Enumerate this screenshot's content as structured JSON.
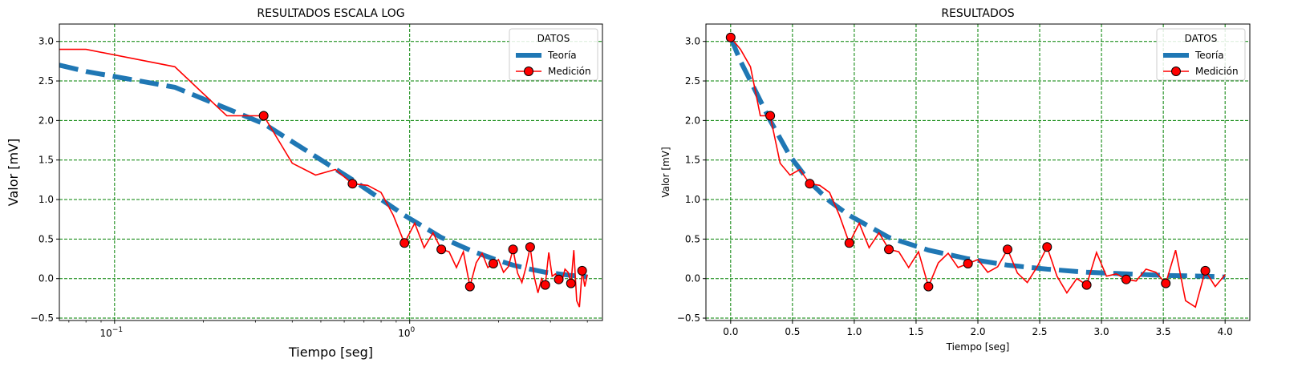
{
  "chart_data": [
    {
      "type": "line",
      "title": "RESULTADOS ESCALA LOG",
      "xlabel": "Tiempo [seg]",
      "ylabel": "Valor [mV]",
      "xscale": "log",
      "xlim": [
        0.065,
        4.5
      ],
      "ylim": [
        -0.53,
        3.22
      ],
      "x_ticks": [
        {
          "value": 0.1,
          "base": "10",
          "exp": "−1"
        },
        {
          "value": 1,
          "base": "10",
          "exp": "0"
        }
      ],
      "y_ticks": [
        "−0.5",
        "0.0",
        "0.5",
        "1.0",
        "1.5",
        "2.0",
        "2.5",
        "3.0"
      ],
      "grid": true,
      "legend": {
        "title": "DATOS",
        "placement": "top-right"
      },
      "series": [
        {
          "name": "Teoría",
          "style": "dashed",
          "color": "#1f77b4",
          "x": [
            0.065,
            0.08,
            0.16,
            0.32,
            0.64,
            0.96,
            1.28,
            1.6,
            1.92,
            2.24,
            2.56,
            2.88,
            3.2,
            3.52,
            3.84,
            4.0
          ],
          "y": [
            2.7,
            2.62,
            2.42,
            1.96,
            1.25,
            0.8,
            0.52,
            0.36,
            0.25,
            0.17,
            0.12,
            0.08,
            0.06,
            0.04,
            0.03,
            0.02
          ]
        },
        {
          "name": "Medición",
          "style": "line-marker",
          "color": "#ff0000",
          "marker_color": "#ff0000",
          "x": [
            0.065,
            0.08,
            0.16,
            0.24,
            0.32,
            0.4,
            0.48,
            0.56,
            0.64,
            0.72,
            0.8,
            0.88,
            0.96,
            1.04,
            1.12,
            1.2,
            1.28,
            1.36,
            1.44,
            1.52,
            1.6,
            1.68,
            1.76,
            1.84,
            1.92,
            2.0,
            2.08,
            2.16,
            2.24,
            2.32,
            2.4,
            2.48,
            2.56,
            2.64,
            2.72,
            2.8,
            2.88,
            2.96,
            3.04,
            3.12,
            3.2,
            3.28,
            3.36,
            3.44,
            3.52,
            3.6,
            3.68,
            3.76,
            3.84,
            3.92,
            4.0
          ],
          "y": [
            2.9,
            2.9,
            2.68,
            2.06,
            2.06,
            1.46,
            1.31,
            1.38,
            1.2,
            1.18,
            1.09,
            0.8,
            0.45,
            0.7,
            0.39,
            0.58,
            0.37,
            0.34,
            0.14,
            0.34,
            -0.1,
            0.2,
            0.32,
            0.14,
            0.19,
            0.24,
            0.08,
            0.15,
            0.37,
            0.07,
            -0.05,
            0.15,
            0.4,
            0.03,
            -0.18,
            0.0,
            -0.08,
            0.33,
            0.03,
            0.06,
            -0.01,
            -0.03,
            0.12,
            0.08,
            -0.06,
            0.36,
            -0.28,
            -0.36,
            0.1,
            -0.1,
            0.05
          ],
          "marker_x": [
            0.32,
            0.64,
            0.96,
            1.28,
            1.6,
            1.92,
            2.24,
            2.56,
            2.88,
            3.2,
            3.52,
            3.84
          ],
          "marker_y": [
            2.06,
            1.2,
            0.45,
            0.37,
            -0.1,
            0.19,
            0.37,
            0.4,
            -0.08,
            -0.01,
            -0.06,
            0.1
          ]
        }
      ]
    },
    {
      "type": "line",
      "title": "RESULTADOS",
      "xlabel": "Tiempo [seg]",
      "ylabel": "Valor [mV]",
      "xscale": "linear",
      "xlim": [
        -0.2,
        4.2
      ],
      "ylim": [
        -0.53,
        3.22
      ],
      "x_ticks": [
        "0.0",
        "0.5",
        "1.0",
        "1.5",
        "2.0",
        "2.5",
        "3.0",
        "3.5",
        "4.0"
      ],
      "y_ticks": [
        "−0.5",
        "0.0",
        "0.5",
        "1.0",
        "1.5",
        "2.0",
        "2.5",
        "3.0"
      ],
      "grid": true,
      "legend": {
        "title": "DATOS",
        "placement": "top-right"
      },
      "series": [
        {
          "name": "Teoría",
          "style": "dashed",
          "color": "#1f77b4",
          "x": [
            0,
            0.08,
            0.16,
            0.32,
            0.48,
            0.64,
            0.8,
            0.96,
            1.28,
            1.6,
            1.92,
            2.24,
            2.56,
            2.88,
            3.2,
            3.52,
            3.84,
            4.0
          ],
          "y": [
            3.05,
            2.75,
            2.5,
            2.0,
            1.55,
            1.22,
            0.98,
            0.8,
            0.52,
            0.36,
            0.25,
            0.17,
            0.12,
            0.08,
            0.06,
            0.04,
            0.03,
            0.02
          ]
        },
        {
          "name": "Medición",
          "style": "line-marker",
          "color": "#ff0000",
          "marker_color": "#ff0000",
          "x": [
            0,
            0.08,
            0.16,
            0.24,
            0.32,
            0.4,
            0.48,
            0.56,
            0.64,
            0.72,
            0.8,
            0.88,
            0.96,
            1.04,
            1.12,
            1.2,
            1.28,
            1.36,
            1.44,
            1.52,
            1.6,
            1.68,
            1.76,
            1.84,
            1.92,
            2.0,
            2.08,
            2.16,
            2.24,
            2.32,
            2.4,
            2.48,
            2.56,
            2.64,
            2.72,
            2.8,
            2.88,
            2.96,
            3.04,
            3.12,
            3.2,
            3.28,
            3.36,
            3.44,
            3.52,
            3.6,
            3.68,
            3.76,
            3.84,
            3.92,
            4.0
          ],
          "y": [
            3.05,
            2.9,
            2.68,
            2.06,
            2.06,
            1.46,
            1.31,
            1.38,
            1.2,
            1.18,
            1.09,
            0.8,
            0.45,
            0.7,
            0.39,
            0.58,
            0.37,
            0.34,
            0.14,
            0.34,
            -0.1,
            0.2,
            0.32,
            0.14,
            0.19,
            0.24,
            0.08,
            0.15,
            0.37,
            0.07,
            -0.05,
            0.15,
            0.4,
            0.03,
            -0.18,
            0.0,
            -0.08,
            0.33,
            0.03,
            0.06,
            -0.01,
            -0.03,
            0.12,
            0.08,
            -0.06,
            0.36,
            -0.28,
            -0.36,
            0.1,
            -0.1,
            0.05
          ],
          "marker_x": [
            0,
            0.32,
            0.64,
            0.96,
            1.28,
            1.6,
            1.92,
            2.24,
            2.56,
            2.88,
            3.2,
            3.52,
            3.84
          ],
          "marker_y": [
            3.05,
            2.06,
            1.2,
            0.45,
            0.37,
            -0.1,
            0.19,
            0.37,
            0.4,
            -0.08,
            -0.01,
            -0.06,
            0.1
          ]
        }
      ]
    }
  ]
}
